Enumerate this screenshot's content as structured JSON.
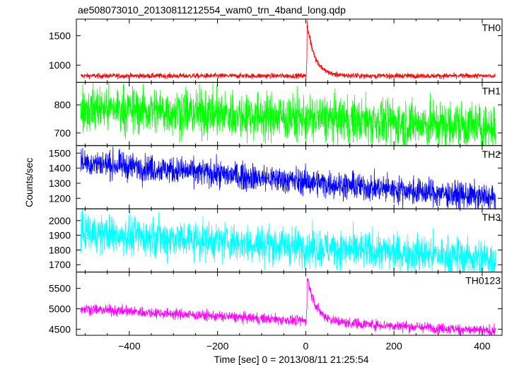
{
  "chart_data": {
    "type": "line",
    "title": "ae508073010_20130811212554_wam0_trn_4band_long.qdp",
    "xlabel": "Time [sec] 0 = 2013/08/11 21:25:54",
    "ylabel": "Counts/sec",
    "xlim": [
      -520,
      445
    ],
    "x_ticks": [
      -400,
      -200,
      0,
      200,
      400
    ],
    "x_tick_labels": [
      "−400",
      "−200",
      "0",
      "200",
      "400"
    ],
    "x_data_range": [
      -510,
      430
    ],
    "panels": [
      {
        "name": "TH0",
        "color": "#ff0000",
        "ylim": [
          710,
          1780
        ],
        "yticks": [
          1000,
          1500
        ],
        "baseline_start": 820,
        "baseline_end": 820,
        "noise": 22,
        "burst": {
          "time": 3,
          "peak": 1780,
          "decay": 18
        }
      },
      {
        "name": "TH1",
        "color": "#00ff00",
        "ylim": [
          655,
          880
        ],
        "yticks": [
          700,
          800
        ],
        "baseline_start": 790,
        "baseline_end": 720,
        "noise": 42,
        "burst": null
      },
      {
        "name": "TH2",
        "color": "#0000ff",
        "ylim": [
          1130,
          1550
        ],
        "yticks": [
          1200,
          1300,
          1400,
          1500
        ],
        "baseline_start": 1440,
        "baseline_end": 1200,
        "noise": 45,
        "burst": null
      },
      {
        "name": "TH3",
        "color": "#00ffff",
        "ylim": [
          1650,
          2080
        ],
        "yticks": [
          1700,
          1800,
          1900,
          2000
        ],
        "baseline_start": 1920,
        "baseline_end": 1740,
        "noise": 65,
        "burst": null
      },
      {
        "name": "TH0123",
        "color": "#ff00ff",
        "ylim": [
          4350,
          5900
        ],
        "yticks": [
          4500,
          5000,
          5500
        ],
        "baseline_start": 5000,
        "baseline_end": 4450,
        "noise": 65,
        "burst": {
          "time": 3,
          "peak": 5900,
          "decay": 20
        }
      }
    ]
  }
}
